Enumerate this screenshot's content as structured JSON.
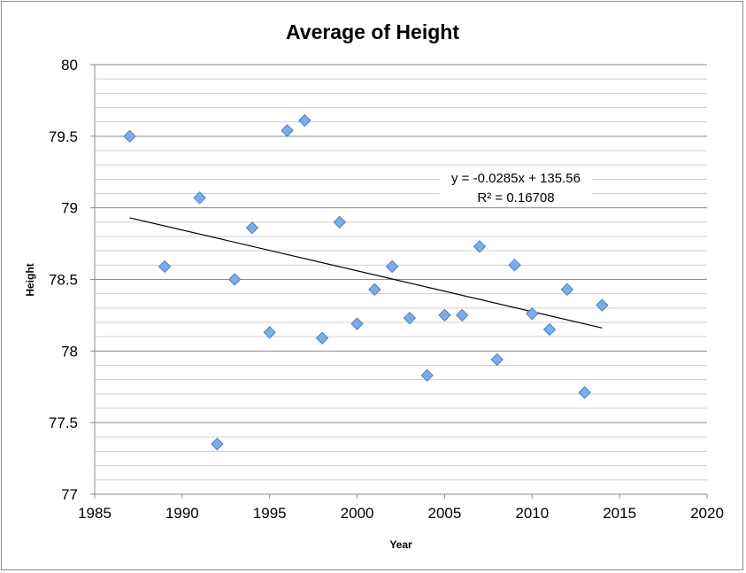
{
  "chart_data": {
    "type": "scatter",
    "title": "Average of Height",
    "xlabel": "Year",
    "ylabel": "Height",
    "xlim": [
      1985,
      2020
    ],
    "ylim": [
      77,
      80
    ],
    "x_ticks": [
      "1985",
      "1990",
      "1995",
      "2000",
      "2005",
      "2010",
      "2015",
      "2020"
    ],
    "y_ticks": [
      "77",
      "77.5",
      "78",
      "78.5",
      "79",
      "79.5",
      "80"
    ],
    "grid": true,
    "legend": "none",
    "marker_color": "#7aaee8",
    "marker_edge": "#4a7fc4",
    "points": [
      {
        "x": 1987,
        "y": 79.5
      },
      {
        "x": 1989,
        "y": 78.59
      },
      {
        "x": 1991,
        "y": 79.07
      },
      {
        "x": 1992,
        "y": 77.35
      },
      {
        "x": 1993,
        "y": 78.5
      },
      {
        "x": 1994,
        "y": 78.86
      },
      {
        "x": 1995,
        "y": 78.13
      },
      {
        "x": 1996,
        "y": 79.54
      },
      {
        "x": 1997,
        "y": 79.61
      },
      {
        "x": 1998,
        "y": 78.09
      },
      {
        "x": 1999,
        "y": 78.9
      },
      {
        "x": 2000,
        "y": 78.19
      },
      {
        "x": 2001,
        "y": 78.43
      },
      {
        "x": 2002,
        "y": 78.59
      },
      {
        "x": 2003,
        "y": 78.23
      },
      {
        "x": 2004,
        "y": 77.83
      },
      {
        "x": 2005,
        "y": 78.25
      },
      {
        "x": 2006,
        "y": 78.25
      },
      {
        "x": 2007,
        "y": 78.73
      },
      {
        "x": 2008,
        "y": 77.94
      },
      {
        "x": 2009,
        "y": 78.6
      },
      {
        "x": 2010,
        "y": 78.26
      },
      {
        "x": 2011,
        "y": 78.15
      },
      {
        "x": 2012,
        "y": 78.43
      },
      {
        "x": 2013,
        "y": 77.71
      },
      {
        "x": 2014,
        "y": 78.32
      }
    ],
    "trendline": {
      "x_range": [
        1987,
        2014
      ],
      "slope": -0.0285,
      "intercept": 135.56,
      "equation": "y = -0.0285x + 135.56",
      "r_squared": "R² = 0.16708"
    }
  }
}
